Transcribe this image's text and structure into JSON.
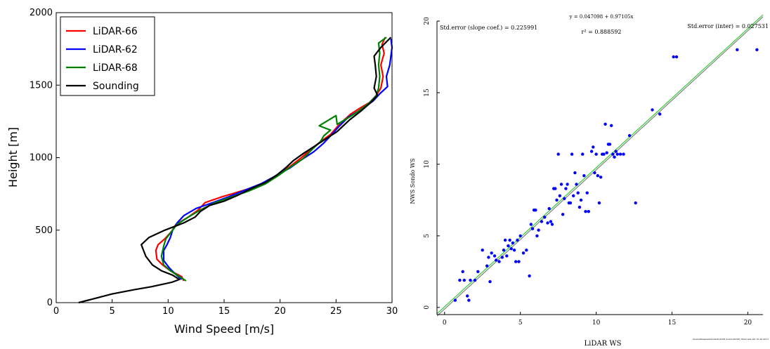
{
  "chart_data": [
    {
      "type": "line",
      "xlabel": "Wind Speed [m/s]",
      "ylabel": "Height [m]",
      "xlim": [
        0,
        30
      ],
      "ylim": [
        0,
        2000
      ],
      "xticks": [
        "0",
        "5",
        "10",
        "15",
        "20",
        "25",
        "30"
      ],
      "yticks": [
        "0",
        "500",
        "1000",
        "1500",
        "2000"
      ],
      "grid": false,
      "legend_position": "top-left",
      "series": [
        {
          "name": "LiDAR-66",
          "color": "#ff0000",
          "points": [
            [
              11.4,
              150
            ],
            [
              11.2,
              180
            ],
            [
              10.2,
              220
            ],
            [
              9.5,
              260
            ],
            [
              9.0,
              300
            ],
            [
              8.9,
              360
            ],
            [
              9.1,
              400
            ],
            [
              9.7,
              440
            ],
            [
              10.3,
              490
            ],
            [
              10.7,
              540
            ],
            [
              11.8,
              590
            ],
            [
              12.7,
              640
            ],
            [
              13.3,
              690
            ],
            [
              14.8,
              730
            ],
            [
              17.4,
              790
            ],
            [
              18.7,
              830
            ],
            [
              19.7,
              880
            ],
            [
              20.9,
              940
            ],
            [
              21.9,
              1000
            ],
            [
              22.8,
              1060
            ],
            [
              23.6,
              1110
            ],
            [
              24.5,
              1160
            ],
            [
              25.3,
              1230
            ],
            [
              26.3,
              1300
            ],
            [
              27.1,
              1340
            ],
            [
              28.0,
              1380
            ],
            [
              28.6,
              1430
            ],
            [
              29.0,
              1480
            ],
            [
              29.2,
              1560
            ],
            [
              29.0,
              1640
            ],
            [
              29.3,
              1720
            ],
            [
              29.1,
              1780
            ],
            [
              29.4,
              1830
            ]
          ]
        },
        {
          "name": "LiDAR-62",
          "color": "#0000ff",
          "points": [
            [
              11.2,
              160
            ],
            [
              10.6,
              200
            ],
            [
              10.1,
              240
            ],
            [
              9.6,
              290
            ],
            [
              9.6,
              360
            ],
            [
              9.9,
              400
            ],
            [
              10.2,
              450
            ],
            [
              10.4,
              500
            ],
            [
              10.8,
              550
            ],
            [
              11.4,
              600
            ],
            [
              12.5,
              650
            ],
            [
              14.0,
              690
            ],
            [
              15.4,
              730
            ],
            [
              17.0,
              780
            ],
            [
              18.3,
              820
            ],
            [
              19.5,
              870
            ],
            [
              20.9,
              930
            ],
            [
              22.0,
              990
            ],
            [
              23.0,
              1040
            ],
            [
              23.9,
              1100
            ],
            [
              24.5,
              1150
            ],
            [
              25.2,
              1210
            ],
            [
              26.1,
              1280
            ],
            [
              27.2,
              1330
            ],
            [
              28.3,
              1390
            ],
            [
              28.9,
              1440
            ],
            [
              29.6,
              1490
            ],
            [
              29.5,
              1560
            ],
            [
              29.8,
              1640
            ],
            [
              29.9,
              1700
            ],
            [
              30.0,
              1760
            ],
            [
              29.9,
              1820
            ]
          ]
        },
        {
          "name": "LiDAR-68",
          "color": "#008000",
          "points": [
            [
              11.6,
              150
            ],
            [
              11.0,
              180
            ],
            [
              10.2,
              220
            ],
            [
              9.6,
              260
            ],
            [
              9.4,
              320
            ],
            [
              9.6,
              390
            ],
            [
              9.8,
              440
            ],
            [
              10.3,
              490
            ],
            [
              10.8,
              540
            ],
            [
              11.8,
              590
            ],
            [
              12.9,
              640
            ],
            [
              14.2,
              690
            ],
            [
              15.7,
              730
            ],
            [
              17.2,
              770
            ],
            [
              18.7,
              820
            ],
            [
              19.9,
              880
            ],
            [
              21.0,
              940
            ],
            [
              22.0,
              990
            ],
            [
              22.9,
              1060
            ],
            [
              23.6,
              1110
            ],
            [
              23.9,
              1150
            ],
            [
              24.5,
              1190
            ],
            [
              23.5,
              1220
            ],
            [
              25.0,
              1290
            ],
            [
              25.1,
              1230
            ],
            [
              26.0,
              1270
            ],
            [
              27.0,
              1320
            ],
            [
              28.0,
              1380
            ],
            [
              28.6,
              1430
            ],
            [
              28.8,
              1480
            ],
            [
              28.9,
              1560
            ],
            [
              28.8,
              1640
            ],
            [
              28.9,
              1720
            ],
            [
              28.8,
              1790
            ],
            [
              29.5,
              1830
            ]
          ]
        },
        {
          "name": "Sounding",
          "color": "#000000",
          "points": [
            [
              2.0,
              0
            ],
            [
              3.5,
              30
            ],
            [
              5.0,
              60
            ],
            [
              7.0,
              90
            ],
            [
              8.5,
              110
            ],
            [
              10.3,
              140
            ],
            [
              11.0,
              160
            ],
            [
              10.4,
              190
            ],
            [
              9.4,
              220
            ],
            [
              8.6,
              260
            ],
            [
              8.0,
              320
            ],
            [
              7.6,
              400
            ],
            [
              8.3,
              450
            ],
            [
              9.7,
              500
            ],
            [
              11.4,
              550
            ],
            [
              12.4,
              590
            ],
            [
              12.9,
              630
            ],
            [
              13.7,
              670
            ],
            [
              15.0,
              700
            ],
            [
              16.2,
              740
            ],
            [
              17.5,
              790
            ],
            [
              18.7,
              830
            ],
            [
              19.7,
              880
            ],
            [
              20.5,
              930
            ],
            [
              21.2,
              980
            ],
            [
              22.1,
              1030
            ],
            [
              23.1,
              1080
            ],
            [
              24.1,
              1130
            ],
            [
              25.1,
              1180
            ],
            [
              26.2,
              1260
            ],
            [
              27.2,
              1320
            ],
            [
              28.1,
              1380
            ],
            [
              28.7,
              1430
            ],
            [
              28.4,
              1480
            ],
            [
              28.6,
              1560
            ],
            [
              28.5,
              1640
            ],
            [
              28.4,
              1700
            ],
            [
              29.0,
              1760
            ],
            [
              29.9,
              1830
            ]
          ]
        }
      ]
    },
    {
      "type": "scatter",
      "xlabel": "LiDAR WS",
      "ylabel": "NWS Sondo WS",
      "xlim": [
        -0.5,
        21
      ],
      "ylim": [
        -0.5,
        20
      ],
      "xticks": [
        "0",
        "5",
        "10",
        "15",
        "20"
      ],
      "yticks": [
        "0",
        "5",
        "10",
        "15",
        "20"
      ],
      "grid": false,
      "annotations": {
        "equation": "y = 0.047098 + 0.97105x",
        "r2": "r² = 0.888592",
        "std_slope": "Std.error (slope coef.) = 0.225991",
        "std_inter": "Std.error (inter) = 0.027531",
        "footer": "/Users/lmalanezh/Lidar/LiDAR_Sondo/SOND_Wind Ana Ver 01-20-2013"
      },
      "series": [
        {
          "name": "",
          "color": "#0000ff",
          "points": [
            [
              0.7,
              0.5
            ],
            [
              1.0,
              1.9
            ],
            [
              1.2,
              2.5
            ],
            [
              1.3,
              1.9
            ],
            [
              1.5,
              0.8
            ],
            [
              1.6,
              0.5
            ],
            [
              1.7,
              1.9
            ],
            [
              2.0,
              1.9
            ],
            [
              2.2,
              2.5
            ],
            [
              2.5,
              4.0
            ],
            [
              2.8,
              2.9
            ],
            [
              2.9,
              3.5
            ],
            [
              3.0,
              1.8
            ],
            [
              3.1,
              3.8
            ],
            [
              3.3,
              3.6
            ],
            [
              3.4,
              3.3
            ],
            [
              3.6,
              3.2
            ],
            [
              3.8,
              3.5
            ],
            [
              3.9,
              4.0
            ],
            [
              4.0,
              4.7
            ],
            [
              4.1,
              3.6
            ],
            [
              4.2,
              4.3
            ],
            [
              4.3,
              4.7
            ],
            [
              4.4,
              4.1
            ],
            [
              4.5,
              4.5
            ],
            [
              4.6,
              4.0
            ],
            [
              4.7,
              3.2
            ],
            [
              4.8,
              4.7
            ],
            [
              4.9,
              3.2
            ],
            [
              5.0,
              5.0
            ],
            [
              5.2,
              3.8
            ],
            [
              5.4,
              4.0
            ],
            [
              5.6,
              2.2
            ],
            [
              5.7,
              5.8
            ],
            [
              5.8,
              5.5
            ],
            [
              5.9,
              6.8
            ],
            [
              6.0,
              6.8
            ],
            [
              6.1,
              5.0
            ],
            [
              6.2,
              5.4
            ],
            [
              6.4,
              6.0
            ],
            [
              6.6,
              6.3
            ],
            [
              6.8,
              5.9
            ],
            [
              6.9,
              6.9
            ],
            [
              7.0,
              6.0
            ],
            [
              7.1,
              5.8
            ],
            [
              7.2,
              8.3
            ],
            [
              7.3,
              8.3
            ],
            [
              7.4,
              7.5
            ],
            [
              7.5,
              10.7
            ],
            [
              7.6,
              7.8
            ],
            [
              7.7,
              8.6
            ],
            [
              7.8,
              6.5
            ],
            [
              7.9,
              7.6
            ],
            [
              8.0,
              8.3
            ],
            [
              8.1,
              8.6
            ],
            [
              8.2,
              7.3
            ],
            [
              8.3,
              7.3
            ],
            [
              8.4,
              10.7
            ],
            [
              8.5,
              7.8
            ],
            [
              8.6,
              9.4
            ],
            [
              8.7,
              8.6
            ],
            [
              8.8,
              8.0
            ],
            [
              8.9,
              7.0
            ],
            [
              9.0,
              7.5
            ],
            [
              9.1,
              10.7
            ],
            [
              9.2,
              9.2
            ],
            [
              9.3,
              6.7
            ],
            [
              9.4,
              8.0
            ],
            [
              9.5,
              6.7
            ],
            [
              9.7,
              10.9
            ],
            [
              9.8,
              11.2
            ],
            [
              9.9,
              9.4
            ],
            [
              10.0,
              10.7
            ],
            [
              10.1,
              9.2
            ],
            [
              10.2,
              7.3
            ],
            [
              10.3,
              9.1
            ],
            [
              10.4,
              10.7
            ],
            [
              10.5,
              10.7
            ],
            [
              10.6,
              12.8
            ],
            [
              10.7,
              10.8
            ],
            [
              10.8,
              11.4
            ],
            [
              10.9,
              11.4
            ],
            [
              11.0,
              12.7
            ],
            [
              11.1,
              10.7
            ],
            [
              11.2,
              10.5
            ],
            [
              11.3,
              10.9
            ],
            [
              11.4,
              10.7
            ],
            [
              11.6,
              10.7
            ],
            [
              11.8,
              10.7
            ],
            [
              12.2,
              12.0
            ],
            [
              12.6,
              7.3
            ],
            [
              13.7,
              13.8
            ],
            [
              14.2,
              13.5
            ],
            [
              15.1,
              17.5
            ],
            [
              15.3,
              17.5
            ],
            [
              19.3,
              18.0
            ],
            [
              20.6,
              18.0
            ]
          ]
        }
      ],
      "fit_lines": [
        {
          "color": "#808080",
          "points": [
            [
              -0.5,
              -0.6
            ],
            [
              21,
              20.3
            ]
          ]
        },
        {
          "color": "#33cc33",
          "points": [
            [
              -0.5,
              -0.44
            ],
            [
              21,
              20.44
            ]
          ]
        }
      ]
    }
  ]
}
